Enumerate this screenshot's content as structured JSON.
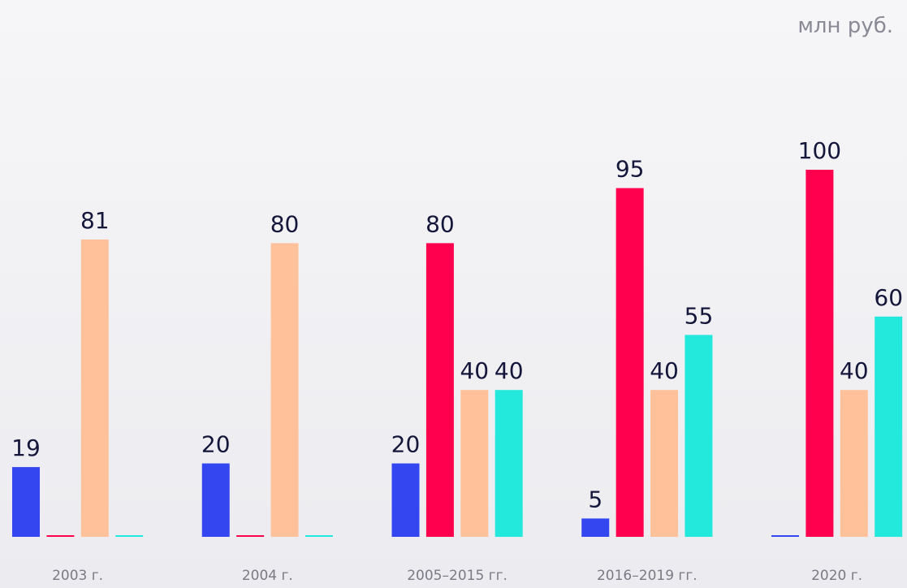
{
  "chart_data": {
    "type": "bar",
    "unit": "млн руб.",
    "categories": [
      "2003 г.",
      "2004 г.",
      "2005–2015 гг.",
      "2016–2019 гг.",
      "2020 г."
    ],
    "series": [
      {
        "color": "#3446f0",
        "values": [
          19,
          20,
          20,
          5,
          0
        ]
      },
      {
        "color": "#ff004f",
        "values": [
          0,
          0,
          80,
          95,
          100
        ]
      },
      {
        "color": "#ffc19a",
        "values": [
          81,
          80,
          40,
          40,
          40
        ]
      },
      {
        "color": "#22e9dc",
        "values": [
          0,
          0,
          40,
          55,
          60
        ]
      }
    ],
    "ylim": [
      0,
      100
    ]
  }
}
